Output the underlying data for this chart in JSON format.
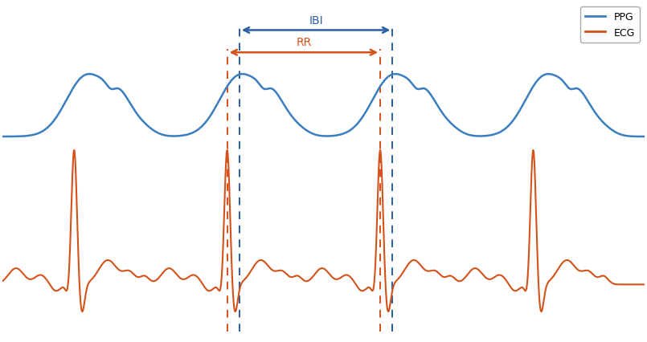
{
  "ppg_color": "#3a7ebf",
  "ecg_color": "#d4521a",
  "background_color": "#ffffff",
  "border_color": "#aaaaaa",
  "ibi_color": "#2a5fa5",
  "rr_color": "#d4521a",
  "ppg_label": "PPG",
  "ecg_label": "ECG",
  "ibi_label": "IBI",
  "rr_label": "RR",
  "figsize": [
    8.05,
    4.27
  ],
  "dpi": 100,
  "legend_fontsize": 9,
  "beat_period": 2.0,
  "n_beats": 4,
  "ppg_baseline": 0.55,
  "ppg_scale": 0.38,
  "ecg_baseline": -0.38,
  "ecg_scale": 0.85,
  "ppg_ecg_lead": 0.08
}
